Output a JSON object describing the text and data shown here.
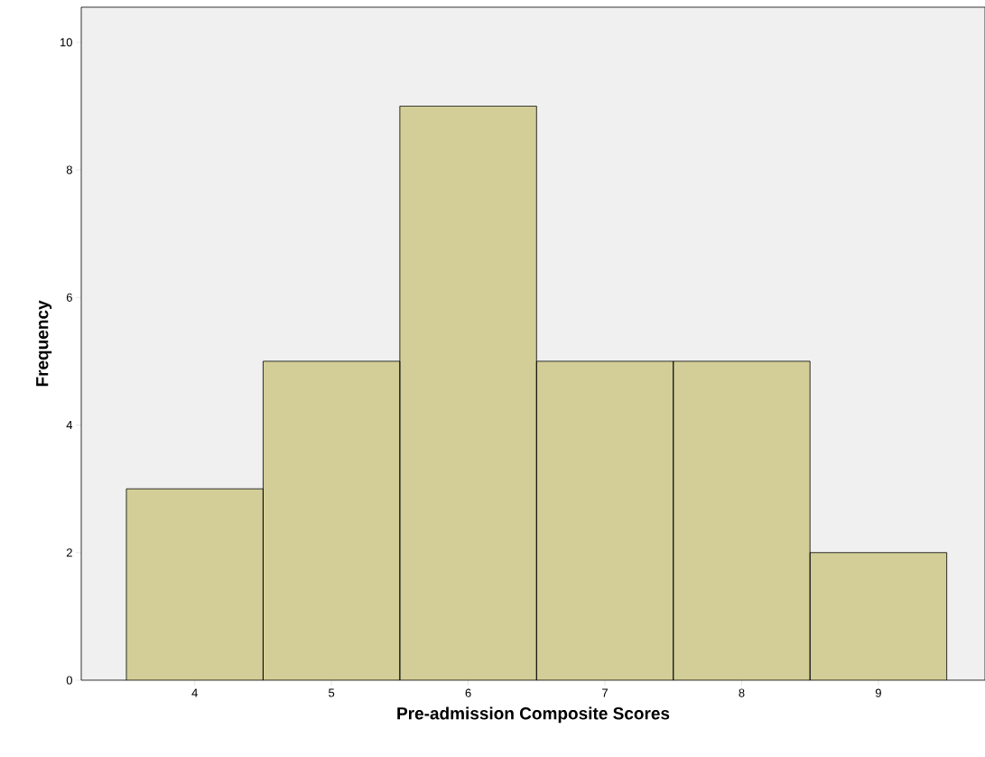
{
  "chart_data": {
    "type": "histogram",
    "xlabel": "Pre-admission Composite Scores",
    "ylabel": "Frequency",
    "bins": [
      3.5,
      4.5,
      5.5,
      6.5,
      7.5,
      8.5,
      9.5
    ],
    "values": [
      3,
      5,
      9,
      5,
      5,
      2
    ],
    "color": "#d3ce97",
    "xlim": [
      3.17,
      9.78
    ],
    "ylim": [
      0,
      10.55
    ],
    "xticks": [
      4,
      5,
      6,
      7,
      8,
      9
    ],
    "yticks": [
      0,
      2,
      4,
      6,
      8,
      10
    ],
    "grid": false
  }
}
